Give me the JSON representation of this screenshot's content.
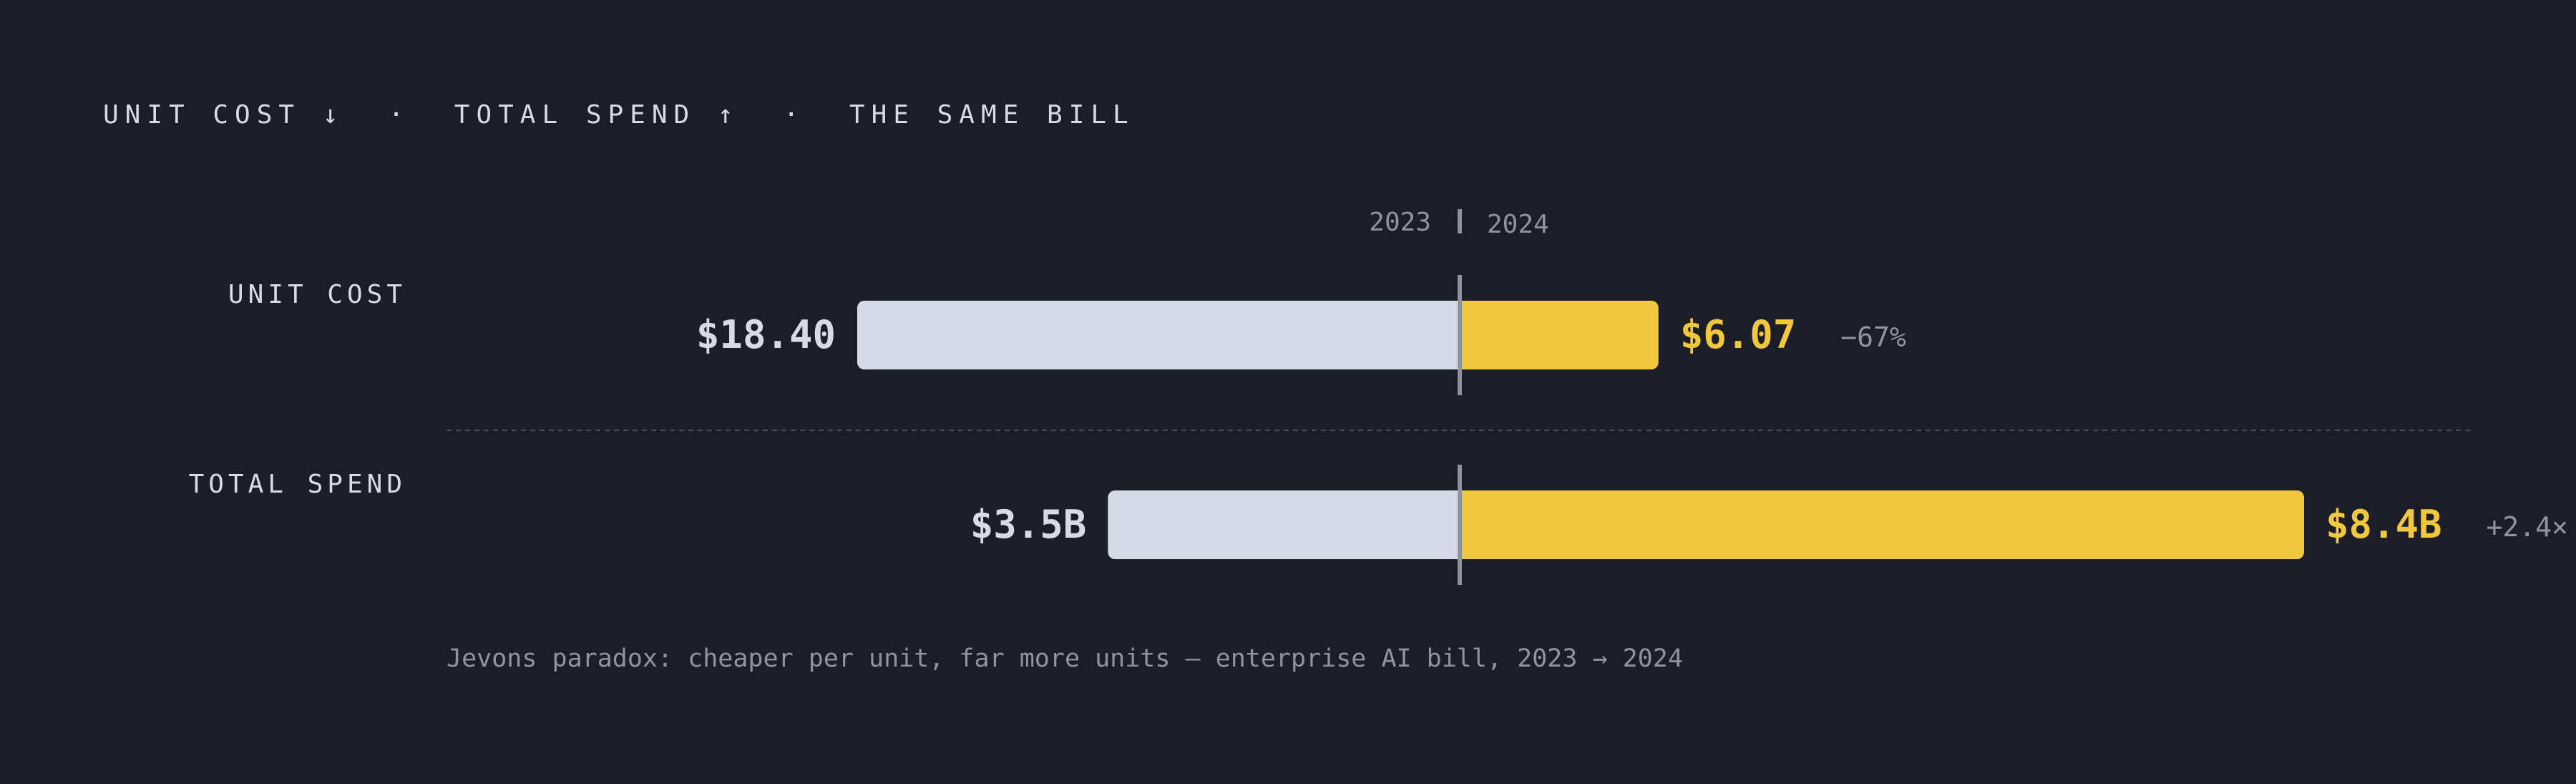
{
  "heading": "UNIT COST ↓  ·  TOTAL SPEND ↑  ·  THE SAME BILL",
  "caption": "Jevons paradox: cheaper per unit, far more units — enterprise AI bill, 2023 → 2024",
  "colors": {
    "background": "#1b1e27",
    "bar_2023": "#d4dbe6",
    "bar_2024": "#f0c73d",
    "text_light": "#d6dbe6",
    "text_muted": "#8e939e",
    "center_line": "#8e939e",
    "divider": "#4a4f5a"
  },
  "chart_data": {
    "type": "bar",
    "layout": "diverging",
    "periods": [
      "2023",
      "2024"
    ],
    "rows": [
      {
        "label": "UNIT COST",
        "value_2023": 18.4,
        "value_2024": 6.07,
        "label_2023": "$18.40",
        "label_2024": "$6.07",
        "change": "−67%"
      },
      {
        "label": "TOTAL SPEND",
        "value_2023": 3.5,
        "value_2024": 8.4,
        "label_2023": "$3.5B",
        "label_2024": "$8.4B",
        "change": "+2.4×"
      }
    ],
    "title": "UNIT COST ↓  ·  TOTAL SPEND ↑  ·  THE SAME BILL",
    "grid": false,
    "legend": "top-center"
  }
}
